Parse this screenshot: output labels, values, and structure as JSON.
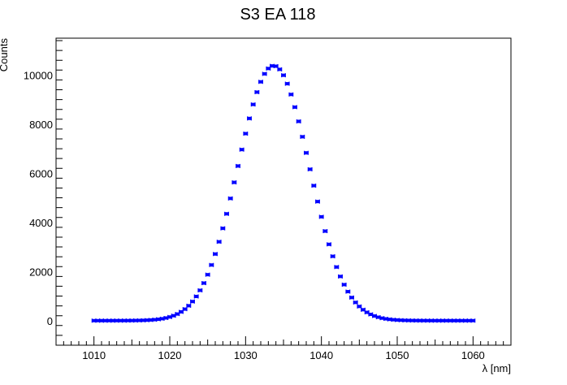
{
  "chart_data": {
    "type": "scatter",
    "title": "S3 EA 118",
    "xlabel": "λ [nm]",
    "ylabel": "Counts",
    "xlim": [
      1005,
      1065
    ],
    "ylim": [
      -1000,
      11500
    ],
    "xticks": [
      1010,
      1020,
      1030,
      1040,
      1050,
      1060
    ],
    "yticks": [
      0,
      2000,
      4000,
      6000,
      8000,
      10000
    ],
    "grid": false,
    "legend": "none",
    "marker_color": "#0000ff",
    "x_error": 0.25,
    "peak_center": 1033.7,
    "peak_height": 10380,
    "peak_sigma": 4.7,
    "x_min": 1010,
    "x_step": 0.5,
    "n_points": 101
  }
}
